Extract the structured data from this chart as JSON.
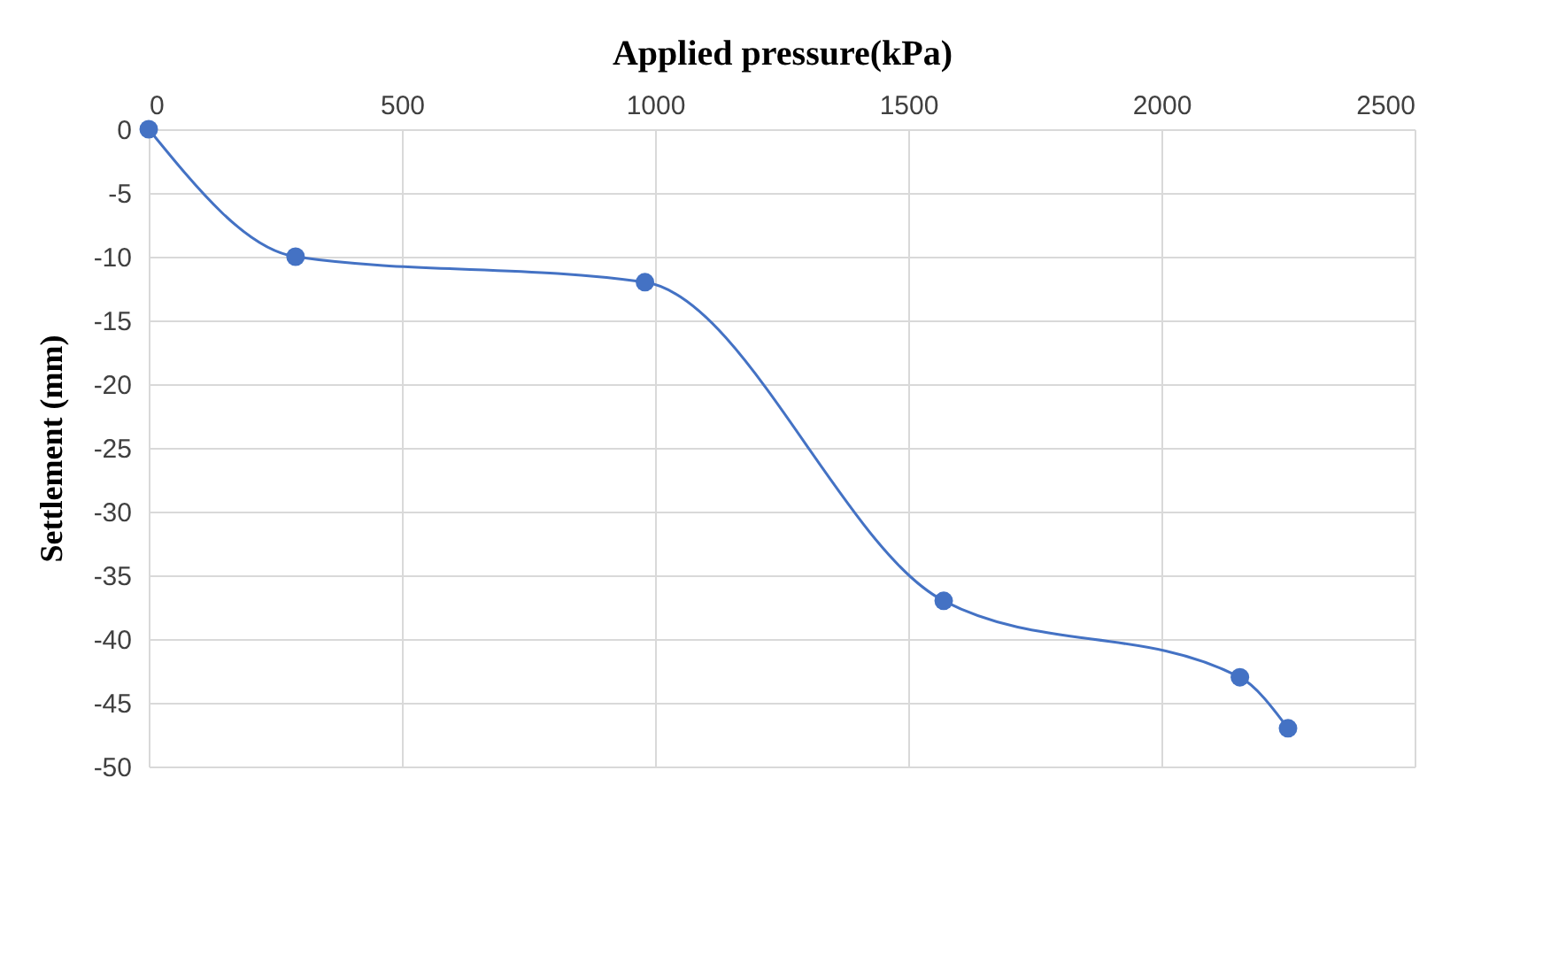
{
  "chart_data": {
    "type": "line",
    "xlabel": "Applied pressure(kPa)",
    "ylabel": "Settlement (mm)",
    "x": [
      0,
      290,
      980,
      1570,
      2155,
      2250
    ],
    "series": [
      {
        "color": "#4472c4",
        "values": [
          0,
          -10,
          -12,
          -37,
          -43,
          -47
        ]
      }
    ],
    "xlim": [
      0,
      2500
    ],
    "xticks": [
      0,
      500,
      1000,
      1500,
      2000,
      2500
    ],
    "ylim": [
      -50,
      0
    ],
    "yticks": [
      0,
      -5,
      -10,
      -15,
      -20,
      -25,
      -30,
      -35,
      -40,
      -45,
      -50
    ],
    "grid": true,
    "marker": "circle",
    "line_style": "solid"
  }
}
